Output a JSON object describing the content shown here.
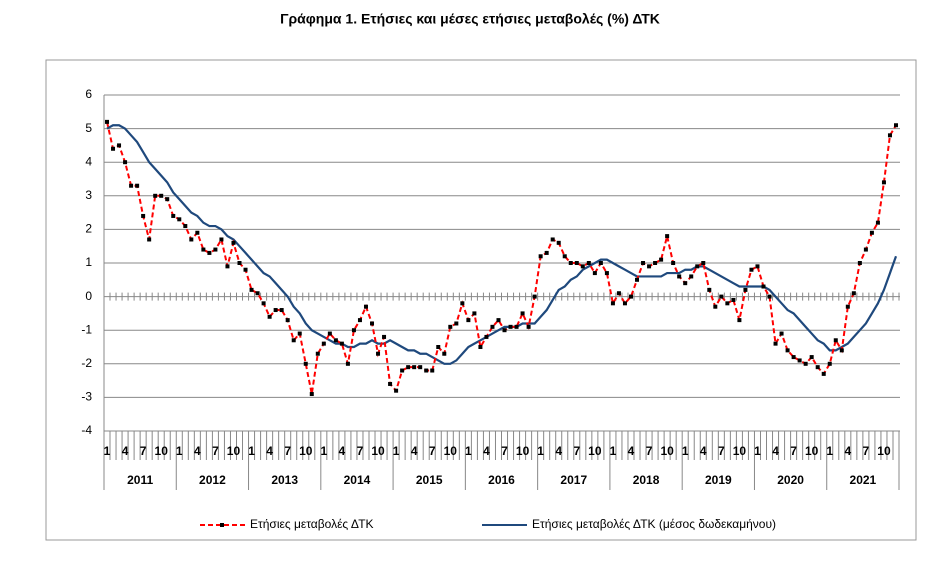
{
  "chart_data": {
    "type": "line",
    "title": "Γράφημα 1. Ετήσιες και μέσες ετήσιες μεταβολές (%) ΔΤΚ",
    "categories": [
      "1",
      null,
      null,
      "4",
      null,
      null,
      "7",
      null,
      null,
      "10",
      null,
      null,
      "1",
      null,
      null,
      "4",
      null,
      null,
      "7",
      null,
      null,
      "10",
      null,
      null,
      "1",
      null,
      null,
      "4",
      null,
      null,
      "7",
      null,
      null,
      "10",
      null,
      null,
      "1",
      null,
      null,
      "4",
      null,
      null,
      "7",
      null,
      null,
      "10",
      null,
      null,
      "1",
      null,
      null,
      "4",
      null,
      null,
      "7",
      null,
      null,
      "10",
      null,
      null,
      "1",
      null,
      null,
      "4",
      null,
      null,
      "7",
      null,
      null,
      "10",
      null,
      null,
      "1",
      null,
      null,
      "4",
      null,
      null,
      "7",
      null,
      null,
      "10",
      null,
      null,
      "1",
      null,
      null,
      "4",
      null,
      null,
      "7",
      null,
      null,
      "10",
      null,
      null,
      "1",
      null,
      null,
      "4",
      null,
      null,
      "7",
      null,
      null,
      "10",
      null,
      null,
      "1",
      null,
      null,
      "4",
      null,
      null,
      "7",
      null,
      null,
      "10",
      null,
      null,
      "1",
      null,
      null,
      "4",
      null,
      null,
      "7",
      null,
      null,
      "10",
      null,
      null
    ],
    "years": [
      "2011",
      "2012",
      "2013",
      "2014",
      "2015",
      "2016",
      "2017",
      "2018",
      "2019",
      "2020",
      "2021"
    ],
    "series": [
      {
        "name": "Ετήσιες μεταβολές ΔΤΚ",
        "color": "#ff0000",
        "style": "dashed",
        "marker_color": "#000000",
        "values": [
          5.2,
          4.4,
          4.5,
          4.0,
          3.3,
          3.3,
          2.4,
          1.7,
          3.0,
          3.0,
          2.9,
          2.4,
          2.3,
          2.1,
          1.7,
          1.9,
          1.4,
          1.3,
          1.4,
          1.7,
          0.9,
          1.6,
          1.0,
          0.8,
          0.2,
          0.1,
          -0.2,
          -0.6,
          -0.4,
          -0.4,
          -0.7,
          -1.3,
          -1.1,
          -2.0,
          -2.9,
          -1.7,
          -1.4,
          -1.1,
          -1.3,
          -1.4,
          -2.0,
          -1.0,
          -0.7,
          -0.3,
          -0.8,
          -1.7,
          -1.2,
          -2.6,
          -2.8,
          -2.2,
          -2.1,
          -2.1,
          -2.1,
          -2.2,
          -2.2,
          -1.5,
          -1.7,
          -0.9,
          -0.8,
          -0.2,
          -0.7,
          -0.5,
          -1.5,
          -1.2,
          -0.9,
          -0.7,
          -1.0,
          -0.9,
          -0.9,
          -0.5,
          -0.9,
          0.0,
          1.2,
          1.3,
          1.7,
          1.6,
          1.2,
          1.0,
          1.0,
          0.9,
          1.0,
          0.7,
          1.0,
          0.7,
          -0.2,
          0.1,
          -0.2,
          0.0,
          0.5,
          1.0,
          0.9,
          1.0,
          1.1,
          1.8,
          1.0,
          0.6,
          0.4,
          0.6,
          0.9,
          1.0,
          0.2,
          -0.3,
          0.0,
          -0.2,
          -0.1,
          -0.7,
          0.2,
          0.8,
          0.9,
          0.3,
          0.0,
          -1.4,
          -1.1,
          -1.6,
          -1.8,
          -1.9,
          -2.0,
          -1.8,
          -2.1,
          -2.3,
          -2.0,
          -1.3,
          -1.6,
          -0.3,
          0.1,
          1.0,
          1.4,
          1.9,
          2.2,
          3.4,
          4.8,
          5.1
        ]
      },
      {
        "name": "Ετήσιες μεταβολές ΔΤΚ (μέσος δωδεκαμήνου)",
        "color": "#1f497d",
        "style": "solid",
        "values": [
          5.0,
          5.1,
          5.1,
          5.0,
          4.8,
          4.6,
          4.3,
          4.0,
          3.8,
          3.6,
          3.4,
          3.1,
          2.9,
          2.7,
          2.5,
          2.4,
          2.2,
          2.1,
          2.1,
          2.0,
          1.8,
          1.7,
          1.5,
          1.3,
          1.1,
          0.9,
          0.7,
          0.6,
          0.4,
          0.2,
          0.0,
          -0.3,
          -0.5,
          -0.8,
          -1.0,
          -1.1,
          -1.2,
          -1.3,
          -1.4,
          -1.4,
          -1.5,
          -1.5,
          -1.4,
          -1.4,
          -1.3,
          -1.4,
          -1.4,
          -1.3,
          -1.4,
          -1.5,
          -1.6,
          -1.6,
          -1.7,
          -1.7,
          -1.8,
          -1.9,
          -2.0,
          -2.0,
          -1.9,
          -1.7,
          -1.5,
          -1.4,
          -1.3,
          -1.2,
          -1.1,
          -1.0,
          -0.9,
          -0.9,
          -0.9,
          -0.8,
          -0.8,
          -0.8,
          -0.6,
          -0.4,
          -0.1,
          0.2,
          0.3,
          0.5,
          0.6,
          0.8,
          0.9,
          1.0,
          1.1,
          1.1,
          1.0,
          0.9,
          0.8,
          0.7,
          0.6,
          0.6,
          0.6,
          0.6,
          0.6,
          0.7,
          0.7,
          0.7,
          0.8,
          0.8,
          0.9,
          0.9,
          0.8,
          0.7,
          0.6,
          0.5,
          0.4,
          0.3,
          0.3,
          0.3,
          0.3,
          0.3,
          0.2,
          0.0,
          -0.2,
          -0.4,
          -0.5,
          -0.7,
          -0.9,
          -1.1,
          -1.3,
          -1.4,
          -1.6,
          -1.6,
          -1.5,
          -1.4,
          -1.2,
          -1.0,
          -0.8,
          -0.5,
          -0.2,
          0.2,
          0.7,
          1.2
        ]
      }
    ],
    "ylim": [
      -4,
      6
    ],
    "yticks": [
      -4,
      -3,
      -2,
      -1,
      0,
      1,
      2,
      3,
      4,
      5,
      6
    ],
    "grid": true
  }
}
